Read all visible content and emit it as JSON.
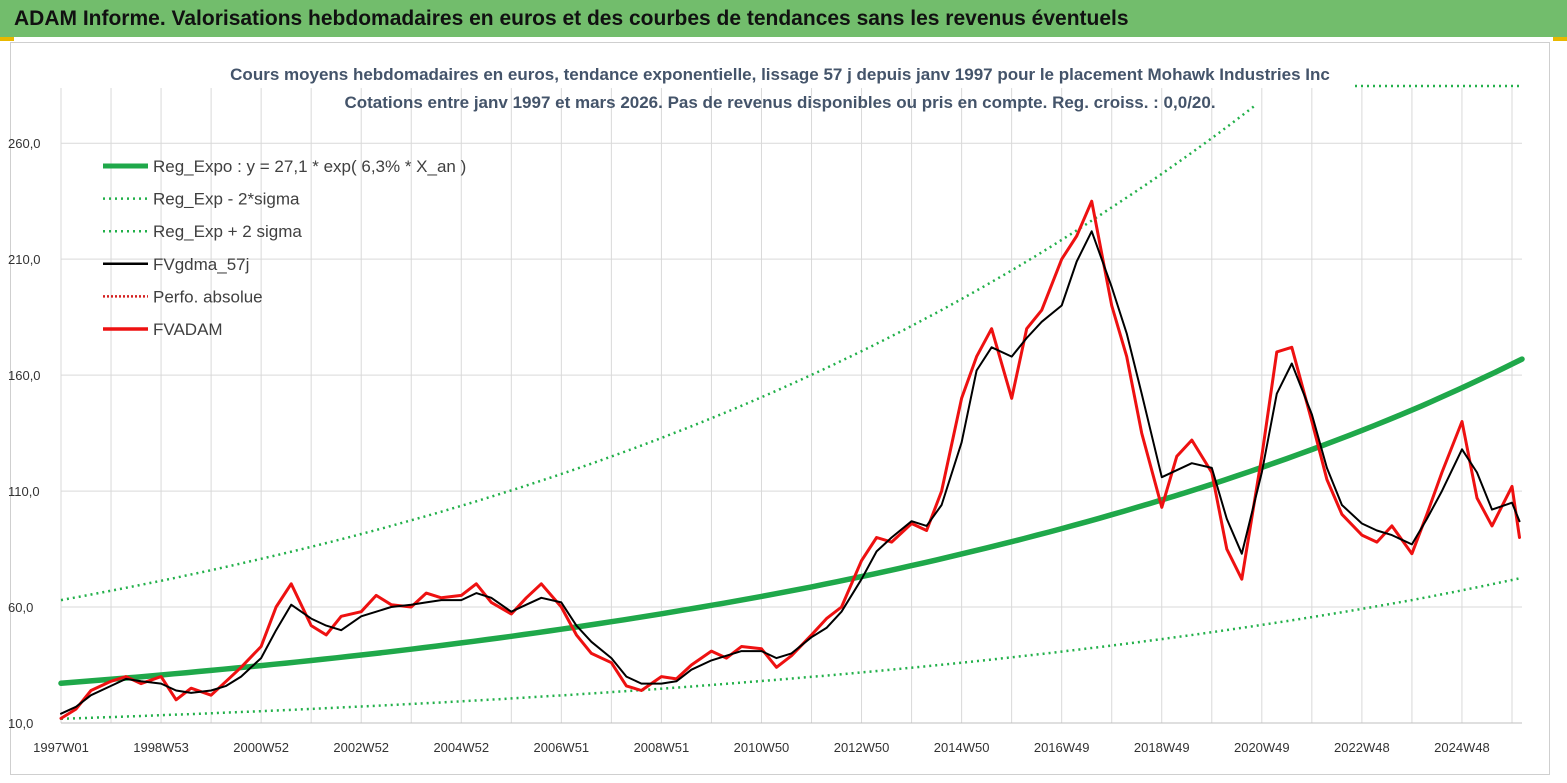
{
  "header": {
    "banner_title": "ADAM Informe. Valorisations hebdomadaires en euros et des courbes de tendances sans les revenus éventuels"
  },
  "colors": {
    "banner": "#72bd6c",
    "trend": "#1fa84a",
    "sigma": "#22b04a",
    "smooth": "#000000",
    "perf": "#d42020",
    "price": "#ee1111",
    "grid": "#d9d9d9"
  },
  "chart_data": {
    "type": "line",
    "title": "Cours moyens hebdomadaires en euros, tendance exponentielle, lissage 57 j depuis janv 1997 pour le placement Mohawk Industries Inc",
    "subtitle": "Cotations entre janv 1997 et mars 2026. Pas de revenus disponibles ou pris en compte. Reg. croiss. : 0,0/20.",
    "xlabel": "",
    "ylabel": "",
    "ylim": [
      10,
      270
    ],
    "y_ticks": [
      "10,0",
      "60,0",
      "110,0",
      "160,0",
      "210,0",
      "260,0"
    ],
    "y_tick_values": [
      10,
      60,
      110,
      160,
      210,
      260
    ],
    "x_range": [
      1997.0,
      2026.2
    ],
    "x_ticks": [
      "1997W01",
      "1998W53",
      "2000W52",
      "2002W52",
      "2004W52",
      "2006W51",
      "2008W51",
      "2010W50",
      "2012W50",
      "2014W50",
      "2016W49",
      "2018W49",
      "2020W49",
      "2022W48",
      "2024W48"
    ],
    "x_tick_values": [
      1997.0,
      1999.0,
      2001.0,
      2003.0,
      2005.0,
      2007.0,
      2009.0,
      2011.0,
      2013.0,
      2015.0,
      2017.0,
      2019.0,
      2021.0,
      2023.0,
      2025.0
    ],
    "grid": true,
    "legend_position": "top-left",
    "series": [
      {
        "name": "Reg_Expo : y = 27,1 * exp( 6,3% *  X_an )",
        "style": "thick-solid",
        "x": [
          1997.0,
          2000.0,
          2003.0,
          2006.0,
          2009.0,
          2012.0,
          2015.0,
          2018.0,
          2021.0,
          2024.0,
          2026.2
        ],
        "y": [
          27.1,
          32.7,
          39.3,
          47.4,
          57.1,
          68.7,
          82.9,
          99.8,
          120.2,
          144.9,
          166.9
        ]
      },
      {
        "name": "Reg_Exp - 2*sigma",
        "style": "dotted",
        "x": [
          1997.0,
          2000.0,
          2003.0,
          2006.0,
          2009.0,
          2012.0,
          2015.0,
          2018.0,
          2021.0,
          2024.0,
          2026.2
        ],
        "y": [
          11.8,
          14.2,
          17.1,
          20.6,
          24.8,
          29.9,
          36.0,
          43.4,
          52.3,
          63.0,
          72.6
        ]
      },
      {
        "name": "Reg_Exp + 2 sigma",
        "style": "dotted",
        "x": [
          1997.0,
          2000.0,
          2003.0,
          2006.0,
          2009.0,
          2012.0,
          2015.0,
          2018.0,
          2020.85
        ],
        "y": [
          63.0,
          75.9,
          91.5,
          110.3,
          132.9,
          160.1,
          192.8,
          232.3,
          276.0
        ]
      },
      {
        "name": "FVgdma_57j",
        "style": "thin-solid",
        "x": [
          1997.0,
          1997.3,
          1997.6,
          1998.0,
          1998.3,
          1998.6,
          1999.0,
          1999.3,
          1999.6,
          2000.0,
          2000.3,
          2000.6,
          2001.0,
          2001.3,
          2001.6,
          2002.0,
          2002.3,
          2002.6,
          2003.0,
          2003.3,
          2003.6,
          2004.0,
          2004.3,
          2004.6,
          2005.0,
          2005.3,
          2005.6,
          2006.0,
          2006.3,
          2006.6,
          2007.0,
          2007.3,
          2007.6,
          2008.0,
          2008.3,
          2008.6,
          2009.0,
          2009.3,
          2009.6,
          2010.0,
          2010.3,
          2010.6,
          2011.0,
          2011.3,
          2011.6,
          2012.0,
          2012.3,
          2012.6,
          2013.0,
          2013.3,
          2013.6,
          2014.0,
          2014.3,
          2014.6,
          2015.0,
          2015.3,
          2015.6,
          2016.0,
          2016.3,
          2016.6,
          2017.0,
          2017.3,
          2017.6,
          2018.0,
          2018.3,
          2018.6,
          2019.0,
          2019.3,
          2019.6,
          2020.0,
          2020.3,
          2020.6,
          2021.0,
          2021.3,
          2021.6,
          2022.0,
          2022.3,
          2022.6,
          2023.0,
          2023.3,
          2023.6,
          2024.0,
          2024.3,
          2024.6,
          2025.0,
          2025.3,
          2025.6,
          2026.0,
          2026.15
        ],
        "y": [
          14,
          17,
          22,
          26,
          29,
          28,
          27,
          24,
          23,
          24,
          26,
          30,
          38,
          50,
          61,
          55,
          52,
          50,
          56,
          58,
          60,
          61,
          62,
          63,
          63,
          66,
          64,
          58,
          61,
          64,
          62,
          52,
          45,
          38,
          30,
          27,
          27,
          28,
          33,
          37,
          39,
          41,
          41,
          38,
          40,
          47,
          51,
          58,
          72,
          84,
          90,
          97,
          95,
          104,
          131,
          162,
          172,
          168,
          176,
          183,
          190,
          209,
          222,
          198,
          178,
          152,
          116,
          119,
          122,
          120,
          98,
          83,
          118,
          152,
          165,
          143,
          120,
          104,
          96,
          93,
          91,
          87,
          98,
          110,
          128,
          118,
          102,
          105,
          97
        ]
      },
      {
        "name": "Perfo. absolue",
        "style": "dotted-thin",
        "x": [],
        "y": []
      },
      {
        "name": "FVADAM",
        "style": "thick-solid",
        "x": [
          1997.0,
          1997.3,
          1997.6,
          1998.0,
          1998.3,
          1998.6,
          1999.0,
          1999.3,
          1999.6,
          2000.0,
          2000.3,
          2000.6,
          2001.0,
          2001.3,
          2001.6,
          2002.0,
          2002.3,
          2002.6,
          2003.0,
          2003.3,
          2003.6,
          2004.0,
          2004.3,
          2004.6,
          2005.0,
          2005.3,
          2005.6,
          2006.0,
          2006.3,
          2006.6,
          2007.0,
          2007.3,
          2007.6,
          2008.0,
          2008.3,
          2008.6,
          2009.0,
          2009.3,
          2009.6,
          2010.0,
          2010.3,
          2010.6,
          2011.0,
          2011.3,
          2011.6,
          2012.0,
          2012.3,
          2012.6,
          2013.0,
          2013.3,
          2013.6,
          2014.0,
          2014.3,
          2014.6,
          2015.0,
          2015.3,
          2015.6,
          2016.0,
          2016.3,
          2016.6,
          2017.0,
          2017.3,
          2017.6,
          2018.0,
          2018.3,
          2018.6,
          2019.0,
          2019.3,
          2019.6,
          2020.0,
          2020.3,
          2020.6,
          2021.0,
          2021.3,
          2021.6,
          2022.0,
          2022.3,
          2022.6,
          2023.0,
          2023.3,
          2023.6,
          2024.0,
          2024.3,
          2024.6,
          2025.0,
          2025.3,
          2025.6,
          2026.0,
          2026.15
        ],
        "y": [
          12,
          16,
          24,
          28,
          30,
          27,
          30,
          20,
          25,
          22,
          28,
          34,
          43,
          60,
          70,
          52,
          48,
          56,
          58,
          65,
          61,
          60,
          66,
          64,
          65,
          70,
          62,
          57,
          64,
          70,
          60,
          48,
          40,
          36,
          26,
          24,
          30,
          29,
          35,
          41,
          38,
          43,
          42,
          34,
          39,
          48,
          55,
          60,
          80,
          90,
          88,
          96,
          93,
          110,
          150,
          168,
          180,
          150,
          180,
          188,
          210,
          220,
          235,
          190,
          168,
          135,
          103,
          125,
          132,
          118,
          85,
          72,
          125,
          170,
          172,
          140,
          115,
          100,
          91,
          88,
          95,
          83,
          100,
          118,
          140,
          107,
          95,
          112,
          90
        ]
      }
    ]
  }
}
